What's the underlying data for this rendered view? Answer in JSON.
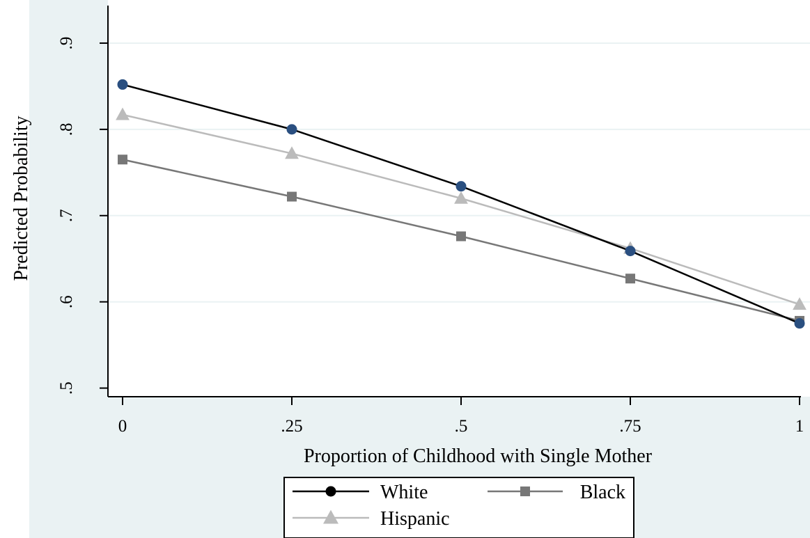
{
  "chart_data": {
    "type": "line",
    "title": "",
    "xlabel": "Proportion of Childhood with Single Mother",
    "ylabel": "Predicted Probability",
    "x": [
      0,
      0.25,
      0.5,
      0.75,
      1
    ],
    "x_tick_labels": [
      "0",
      ".25",
      ".5",
      ".75",
      "1"
    ],
    "y_ticks": [
      0.5,
      0.6,
      0.7,
      0.8,
      0.9
    ],
    "y_tick_labels": [
      ".5",
      ".6",
      ".7",
      ".8",
      ".9"
    ],
    "xlim": [
      -0.02,
      1.02
    ],
    "ylim": [
      0.49,
      0.95
    ],
    "grid": true,
    "legend_position": "bottom",
    "series": [
      {
        "name": "White",
        "values": [
          0.852,
          0.8,
          0.734,
          0.659,
          0.575
        ],
        "color": "#000000",
        "marker": "circle"
      },
      {
        "name": "Black",
        "values": [
          0.765,
          0.722,
          0.676,
          0.627,
          0.578
        ],
        "color": "#777777",
        "marker": "square"
      },
      {
        "name": "Hispanic",
        "values": [
          0.817,
          0.772,
          0.72,
          0.662,
          0.597
        ],
        "color": "#bbbbbb",
        "marker": "triangle"
      }
    ],
    "accent_colors": {
      "white_marker_fill": "#2a4f80",
      "background": "#eaf2f3",
      "gridline": "#ffffff"
    }
  }
}
